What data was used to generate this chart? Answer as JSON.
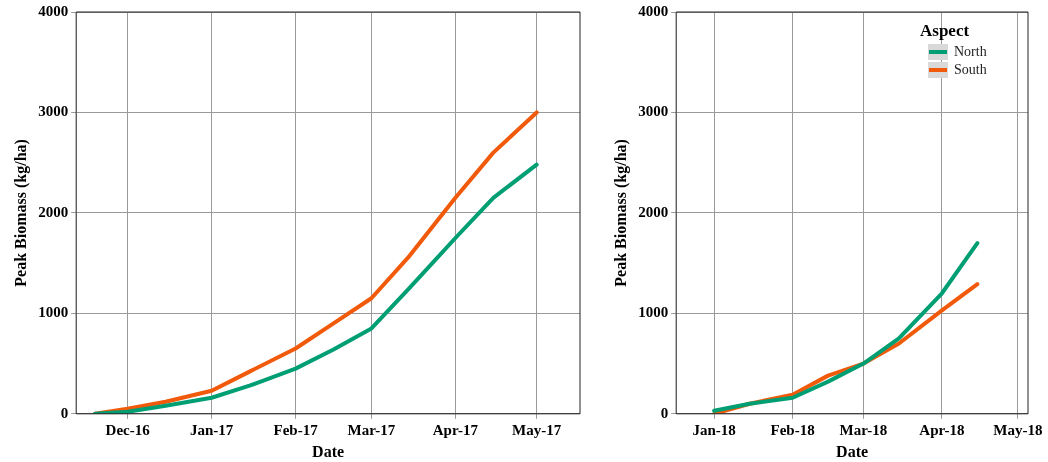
{
  "chart_data": [
    {
      "type": "line",
      "xlabel": "Date",
      "ylabel": "Peak Biomass (kg/ha)",
      "xlim": [
        "2016-11-12",
        "2017-05-17"
      ],
      "ylim": [
        0,
        4000
      ],
      "yticks": [
        0,
        1000,
        2000,
        3000,
        4000
      ],
      "xticks": [
        {
          "value": "2016-12-01",
          "label": "Dec-16"
        },
        {
          "value": "2017-01-01",
          "label": "Jan-17"
        },
        {
          "value": "2017-02-01",
          "label": "Feb-17"
        },
        {
          "value": "2017-03-01",
          "label": "Mar-17"
        },
        {
          "value": "2017-04-01",
          "label": "Apr-17"
        },
        {
          "value": "2017-05-01",
          "label": "May-17"
        }
      ],
      "grid": true,
      "legend": false,
      "line_style": "solid",
      "marker": "none",
      "series": [
        {
          "color": "#009e73",
          "x": [
            "2016-11-19",
            "2016-12-01",
            "2016-12-15",
            "2017-01-01",
            "2017-01-15",
            "2017-02-01",
            "2017-02-15",
            "2017-03-01",
            "2017-03-15",
            "2017-04-01",
            "2017-04-15",
            "2017-05-01"
          ],
          "values": [
            0,
            20,
            80,
            160,
            280,
            450,
            640,
            850,
            1250,
            1750,
            2150,
            2480
          ]
        },
        {
          "color": "#f05a0a",
          "x": [
            "2016-11-19",
            "2016-12-01",
            "2016-12-15",
            "2017-01-01",
            "2017-01-15",
            "2017-02-01",
            "2017-02-15",
            "2017-03-01",
            "2017-03-15",
            "2017-04-01",
            "2017-04-15",
            "2017-05-01"
          ],
          "values": [
            0,
            50,
            120,
            230,
            420,
            650,
            900,
            1150,
            1570,
            2150,
            2600,
            3000
          ]
        }
      ]
    },
    {
      "type": "line",
      "xlabel": "Date",
      "ylabel": "Peak Biomass (kg/ha)",
      "xlim": [
        "2017-12-17",
        "2018-05-05"
      ],
      "ylim": [
        0,
        4000
      ],
      "yticks": [
        0,
        1000,
        2000,
        3000,
        4000
      ],
      "xticks": [
        {
          "value": "2018-01-01",
          "label": "Jan-18"
        },
        {
          "value": "2018-02-01",
          "label": "Feb-18"
        },
        {
          "value": "2018-03-01",
          "label": "Mar-18"
        },
        {
          "value": "2018-04-01",
          "label": "Apr-18"
        },
        {
          "value": "2018-05-01",
          "label": "May-18"
        }
      ],
      "grid": true,
      "legend": "top right",
      "legend_title": "Aspect",
      "line_style": "solid",
      "marker": "none",
      "series": [
        {
          "name": "North",
          "color": "#009e73",
          "x": [
            "2018-01-01",
            "2018-01-15",
            "2018-02-01",
            "2018-02-15",
            "2018-03-01",
            "2018-03-15",
            "2018-04-01",
            "2018-04-15"
          ],
          "values": [
            30,
            100,
            160,
            320,
            500,
            750,
            1200,
            1700
          ]
        },
        {
          "name": "South",
          "color": "#f05a0a",
          "x": [
            "2018-01-01",
            "2018-01-15",
            "2018-02-01",
            "2018-02-15",
            "2018-03-01",
            "2018-03-15",
            "2018-04-01",
            "2018-04-15"
          ],
          "values": [
            0,
            100,
            190,
            380,
            500,
            700,
            1030,
            1290
          ]
        }
      ]
    }
  ]
}
